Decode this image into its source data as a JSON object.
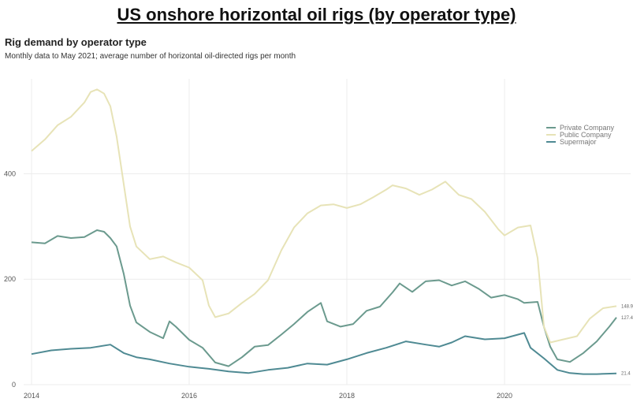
{
  "page": {
    "title": "US onshore horizontal oil rigs (by operator type)"
  },
  "colors": {
    "private": "#6b9a8e",
    "public": "#e7e3b7",
    "supermajor": "#4f8a93",
    "grid": "#ececec"
  },
  "chart_data": {
    "type": "line",
    "title": "Rig demand by operator type",
    "subtitle": "Monthly data to May 2021; average number of horizontal oil-directed rigs per month",
    "xlabel": "",
    "ylabel": "",
    "xlim": [
      2013.9,
      2021.6
    ],
    "ylim": [
      0,
      580
    ],
    "grid": true,
    "legend_position": "top-right",
    "x_ticks": [
      {
        "value": 2014,
        "label": "2014"
      },
      {
        "value": 2016,
        "label": "2016"
      },
      {
        "value": 2018,
        "label": "2018"
      },
      {
        "value": 2020,
        "label": "2020"
      }
    ],
    "y_ticks": [
      {
        "value": 0,
        "label": "0"
      },
      {
        "value": 200,
        "label": "200"
      },
      {
        "value": 400,
        "label": "400"
      }
    ],
    "series": [
      {
        "name": "Private Company",
        "color": "#6b9a8e",
        "end_label": "127.4",
        "points": [
          [
            2014.0,
            270
          ],
          [
            2014.17,
            268
          ],
          [
            2014.33,
            282
          ],
          [
            2014.5,
            278
          ],
          [
            2014.67,
            280
          ],
          [
            2014.83,
            293
          ],
          [
            2014.92,
            290
          ],
          [
            2015.0,
            278
          ],
          [
            2015.08,
            262
          ],
          [
            2015.17,
            210
          ],
          [
            2015.25,
            150
          ],
          [
            2015.33,
            118
          ],
          [
            2015.5,
            100
          ],
          [
            2015.67,
            88
          ],
          [
            2015.75,
            120
          ],
          [
            2015.83,
            110
          ],
          [
            2016.0,
            85
          ],
          [
            2016.17,
            70
          ],
          [
            2016.33,
            42
          ],
          [
            2016.5,
            35
          ],
          [
            2016.67,
            52
          ],
          [
            2016.83,
            72
          ],
          [
            2017.0,
            75
          ],
          [
            2017.17,
            95
          ],
          [
            2017.33,
            115
          ],
          [
            2017.5,
            138
          ],
          [
            2017.67,
            155
          ],
          [
            2017.75,
            120
          ],
          [
            2017.92,
            110
          ],
          [
            2018.08,
            115
          ],
          [
            2018.25,
            140
          ],
          [
            2018.42,
            148
          ],
          [
            2018.58,
            175
          ],
          [
            2018.67,
            192
          ],
          [
            2018.83,
            176
          ],
          [
            2019.0,
            196
          ],
          [
            2019.17,
            198
          ],
          [
            2019.33,
            188
          ],
          [
            2019.5,
            196
          ],
          [
            2019.67,
            182
          ],
          [
            2019.83,
            165
          ],
          [
            2020.0,
            170
          ],
          [
            2020.17,
            162
          ],
          [
            2020.25,
            155
          ],
          [
            2020.42,
            157
          ],
          [
            2020.5,
            110
          ],
          [
            2020.58,
            72
          ],
          [
            2020.67,
            48
          ],
          [
            2020.83,
            43
          ],
          [
            2021.0,
            60
          ],
          [
            2021.17,
            82
          ],
          [
            2021.33,
            110
          ],
          [
            2021.42,
            127.4
          ]
        ]
      },
      {
        "name": "Public Company",
        "color": "#e7e3b7",
        "end_label": "148.9",
        "points": [
          [
            2014.0,
            443
          ],
          [
            2014.17,
            465
          ],
          [
            2014.33,
            492
          ],
          [
            2014.5,
            508
          ],
          [
            2014.67,
            535
          ],
          [
            2014.75,
            555
          ],
          [
            2014.83,
            560
          ],
          [
            2014.92,
            552
          ],
          [
            2015.0,
            528
          ],
          [
            2015.08,
            470
          ],
          [
            2015.17,
            380
          ],
          [
            2015.25,
            300
          ],
          [
            2015.33,
            262
          ],
          [
            2015.5,
            238
          ],
          [
            2015.67,
            243
          ],
          [
            2015.83,
            232
          ],
          [
            2016.0,
            222
          ],
          [
            2016.17,
            198
          ],
          [
            2016.25,
            150
          ],
          [
            2016.33,
            128
          ],
          [
            2016.5,
            135
          ],
          [
            2016.67,
            155
          ],
          [
            2016.83,
            172
          ],
          [
            2017.0,
            198
          ],
          [
            2017.17,
            255
          ],
          [
            2017.33,
            298
          ],
          [
            2017.5,
            325
          ],
          [
            2017.67,
            340
          ],
          [
            2017.83,
            342
          ],
          [
            2018.0,
            335
          ],
          [
            2018.17,
            342
          ],
          [
            2018.33,
            355
          ],
          [
            2018.5,
            370
          ],
          [
            2018.58,
            378
          ],
          [
            2018.75,
            372
          ],
          [
            2018.92,
            360
          ],
          [
            2019.08,
            370
          ],
          [
            2019.25,
            385
          ],
          [
            2019.42,
            360
          ],
          [
            2019.58,
            352
          ],
          [
            2019.75,
            328
          ],
          [
            2019.92,
            295
          ],
          [
            2020.0,
            283
          ],
          [
            2020.17,
            298
          ],
          [
            2020.33,
            302
          ],
          [
            2020.42,
            240
          ],
          [
            2020.5,
            110
          ],
          [
            2020.58,
            80
          ],
          [
            2020.75,
            86
          ],
          [
            2020.92,
            92
          ],
          [
            2021.08,
            125
          ],
          [
            2021.25,
            145
          ],
          [
            2021.42,
            148.9
          ]
        ]
      },
      {
        "name": "Supermajor",
        "color": "#4f8a93",
        "end_label": "21.4",
        "points": [
          [
            2014.0,
            58
          ],
          [
            2014.25,
            65
          ],
          [
            2014.5,
            68
          ],
          [
            2014.75,
            70
          ],
          [
            2015.0,
            76
          ],
          [
            2015.17,
            60
          ],
          [
            2015.33,
            52
          ],
          [
            2015.5,
            48
          ],
          [
            2015.75,
            40
          ],
          [
            2016.0,
            34
          ],
          [
            2016.25,
            30
          ],
          [
            2016.5,
            25
          ],
          [
            2016.75,
            22
          ],
          [
            2017.0,
            28
          ],
          [
            2017.25,
            32
          ],
          [
            2017.5,
            40
          ],
          [
            2017.75,
            38
          ],
          [
            2018.0,
            48
          ],
          [
            2018.25,
            60
          ],
          [
            2018.5,
            70
          ],
          [
            2018.75,
            82
          ],
          [
            2019.0,
            76
          ],
          [
            2019.17,
            72
          ],
          [
            2019.33,
            80
          ],
          [
            2019.5,
            92
          ],
          [
            2019.75,
            86
          ],
          [
            2020.0,
            88
          ],
          [
            2020.25,
            98
          ],
          [
            2020.33,
            70
          ],
          [
            2020.5,
            50
          ],
          [
            2020.67,
            28
          ],
          [
            2020.83,
            22
          ],
          [
            2021.0,
            20
          ],
          [
            2021.17,
            20
          ],
          [
            2021.42,
            21.4
          ]
        ]
      }
    ]
  }
}
